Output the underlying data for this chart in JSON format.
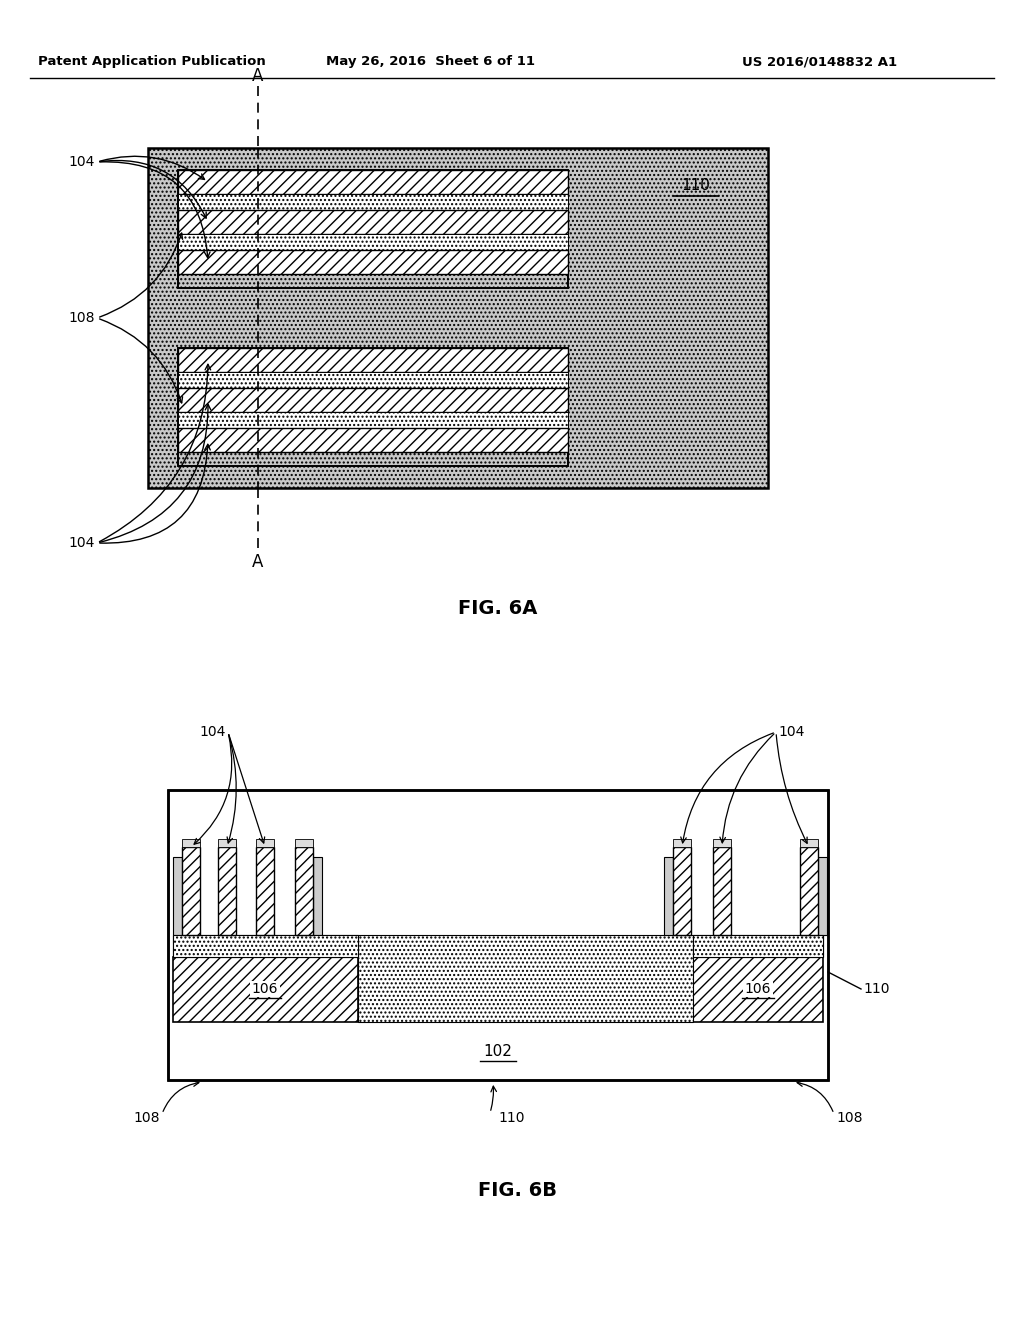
{
  "header_left": "Patent Application Publication",
  "header_mid": "May 26, 2016  Sheet 6 of 11",
  "header_right": "US 2016/0148832 A1",
  "fig6a_label": "FIG. 6A",
  "fig6b_label": "FIG. 6B",
  "background_color": "#ffffff"
}
